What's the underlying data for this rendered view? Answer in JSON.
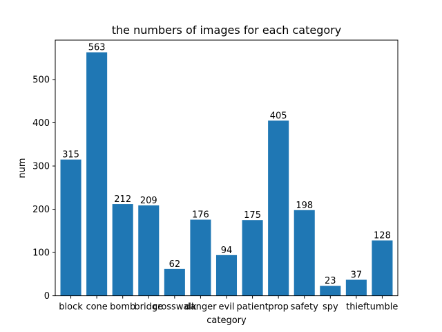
{
  "chart_data": {
    "type": "bar",
    "title": "the numbers of images for each category",
    "xlabel": "category",
    "ylabel": "num",
    "categories": [
      "block",
      "cone",
      "bomb",
      "bridge",
      "crosswalk",
      "danger",
      "evil",
      "patient",
      "prop",
      "safety",
      "spy",
      "thief",
      "tumble"
    ],
    "values": [
      315,
      563,
      212,
      209,
      62,
      176,
      94,
      175,
      405,
      198,
      23,
      37,
      128
    ],
    "data_labels": [
      "315",
      "563",
      "212",
      "209",
      "62",
      "176",
      "94",
      "175",
      "405",
      "198",
      "23",
      "37",
      "128"
    ],
    "ylim": [
      0,
      591.15
    ],
    "yticks": [
      0,
      100,
      200,
      300,
      400,
      500
    ],
    "ytick_labels": [
      "0",
      "100",
      "200",
      "300",
      "400",
      "500"
    ],
    "grid": false,
    "bar_color": "#1f77b4"
  }
}
